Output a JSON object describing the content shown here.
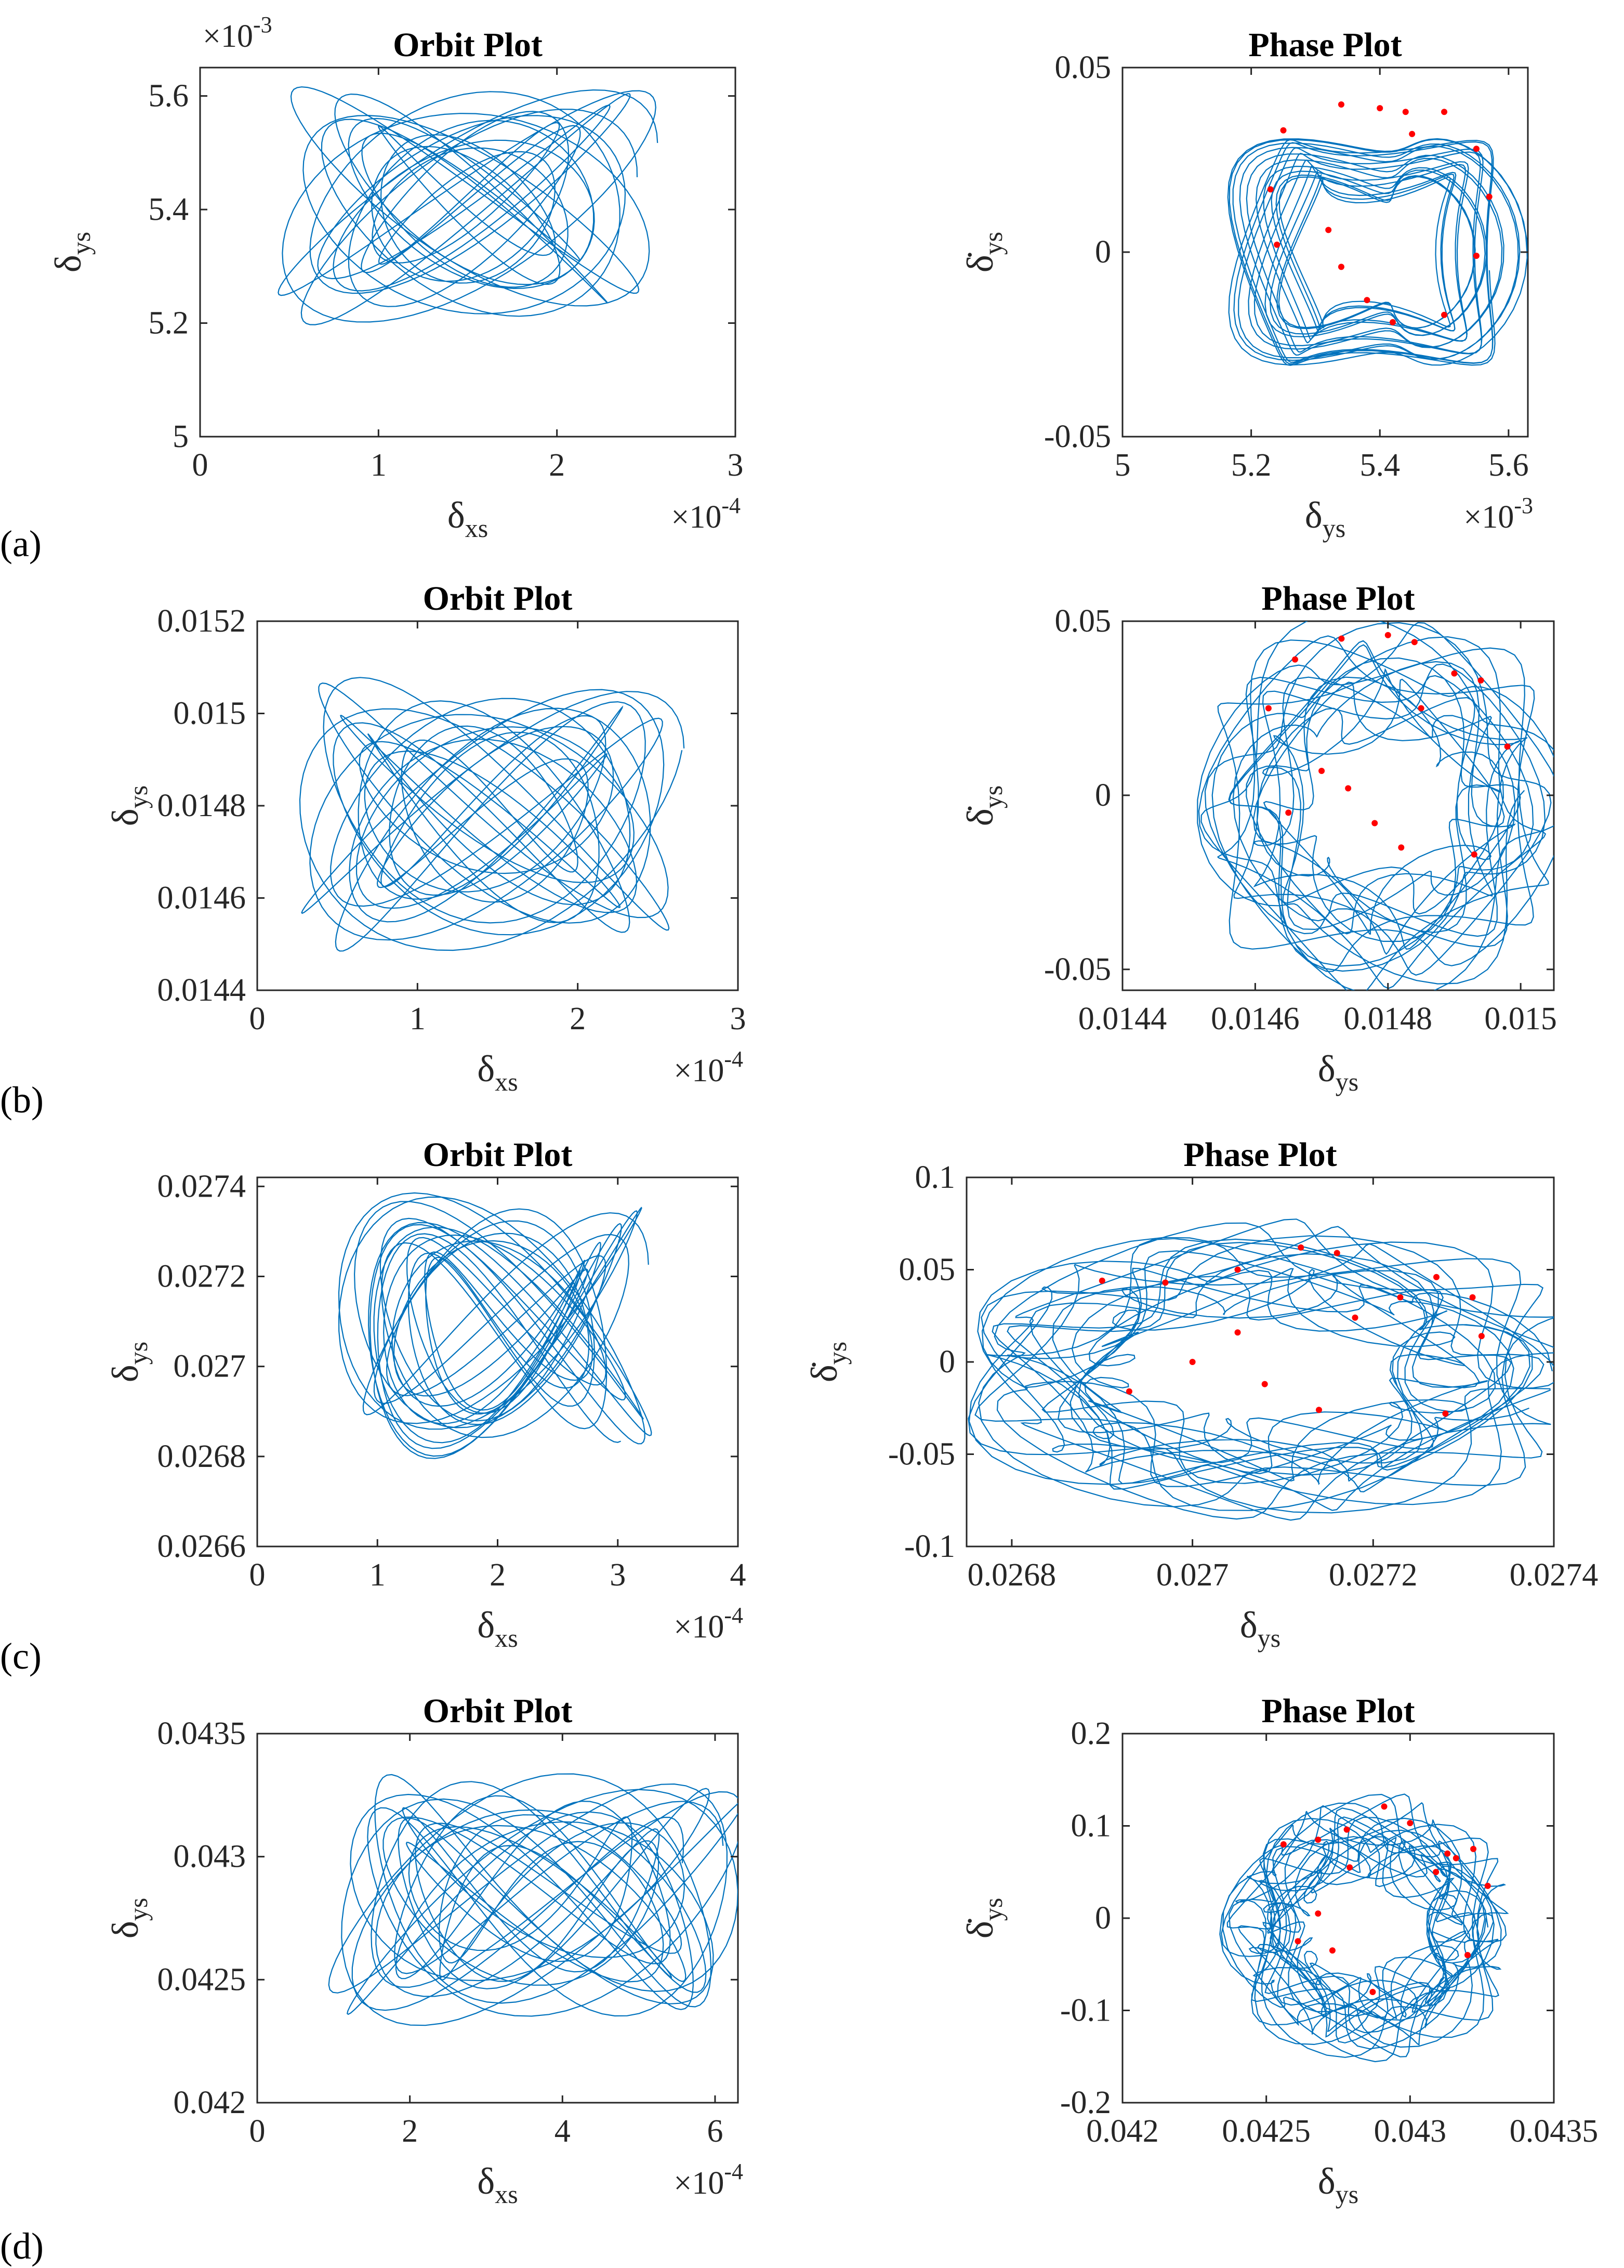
{
  "figure": {
    "panel_labels": [
      "(a)",
      "(b)",
      "(c)",
      "(d)"
    ]
  },
  "chart_data": [
    {
      "panel": "a",
      "kind": "orbit",
      "type": "line",
      "title": "Orbit Plot",
      "xlabel_main": "δ",
      "xlabel_sub": "xs",
      "ylabel_main": "δ",
      "ylabel_sub": "ys",
      "xlim": [
        0,
        3
      ],
      "ylim": [
        5,
        5.65
      ],
      "xticks": [
        "0",
        "1",
        "2",
        "3"
      ],
      "xtick_values": [
        0,
        1,
        2,
        3
      ],
      "yticks": [
        "5",
        "5.2",
        "5.4",
        "5.6"
      ],
      "ytick_values": [
        5,
        5.2,
        5.4,
        5.6
      ],
      "x_multiplier": "×10",
      "x_multiplier_exp": "-4",
      "y_multiplier": "×10",
      "y_multiplier_exp": "-3",
      "series": [
        {
          "name": "orbit",
          "cx": 1.5,
          "cy": 5.41,
          "ax": 0.95,
          "ay": 0.19,
          "color": "#0072BD"
        }
      ]
    },
    {
      "panel": "a",
      "kind": "phase",
      "type": "line",
      "title": "Phase Plot",
      "xlabel_main": "δ",
      "xlabel_sub": "ys",
      "ylabel_main": "δ̇",
      "ylabel_sub": "ys",
      "xlim": [
        5,
        5.63
      ],
      "ylim": [
        -0.05,
        0.05
      ],
      "xticks": [
        "5",
        "5.2",
        "5.4",
        "5.6"
      ],
      "xtick_values": [
        5,
        5.2,
        5.4,
        5.6
      ],
      "yticks": [
        "-0.05",
        "0",
        "0.05"
      ],
      "ytick_values": [
        -0.05,
        0,
        0.05
      ],
      "x_multiplier": "×10",
      "x_multiplier_exp": "-3",
      "series": [
        {
          "name": "trajectory",
          "cx": 5.39,
          "cy": 0,
          "ax": 0.21,
          "ay": 0.035,
          "color": "#0072BD"
        }
      ],
      "poincare_points": [
        [
          5.24,
          0.002
        ],
        [
          5.23,
          0.017
        ],
        [
          5.25,
          0.033
        ],
        [
          5.34,
          0.04
        ],
        [
          5.4,
          0.039
        ],
        [
          5.44,
          0.038
        ],
        [
          5.5,
          0.038
        ],
        [
          5.55,
          0.028
        ],
        [
          5.57,
          0.015
        ],
        [
          5.55,
          -0.001
        ],
        [
          5.5,
          -0.017
        ],
        [
          5.42,
          -0.019
        ],
        [
          5.38,
          -0.013
        ],
        [
          5.34,
          -0.004
        ],
        [
          5.32,
          0.006
        ],
        [
          5.45,
          0.032
        ]
      ]
    },
    {
      "panel": "b",
      "kind": "orbit",
      "type": "line",
      "title": "Orbit Plot",
      "xlabel_main": "δ",
      "xlabel_sub": "xs",
      "ylabel_main": "δ",
      "ylabel_sub": "ys",
      "xlim": [
        0,
        3
      ],
      "ylim": [
        0.0144,
        0.0152
      ],
      "xticks": [
        "0",
        "1",
        "2",
        "3"
      ],
      "xtick_values": [
        0,
        1,
        2,
        3
      ],
      "yticks": [
        "0.0144",
        "0.0146",
        "0.0148",
        "0.015",
        "0.0152"
      ],
      "ytick_values": [
        0.0144,
        0.0146,
        0.0148,
        0.015,
        0.0152
      ],
      "x_multiplier": "×10",
      "x_multiplier_exp": "-4",
      "series": [
        {
          "name": "orbit",
          "cx": 1.45,
          "cy": 0.01478,
          "ax": 1.1,
          "ay": 0.00026,
          "color": "#0072BD"
        }
      ]
    },
    {
      "panel": "b",
      "kind": "phase",
      "type": "line",
      "title": "Phase Plot",
      "xlabel_main": "δ",
      "xlabel_sub": "ys",
      "ylabel_main": "δ̇",
      "ylabel_sub": "ys",
      "xlim": [
        0.0144,
        0.01505
      ],
      "ylim": [
        -0.056,
        0.05
      ],
      "xticks": [
        "0.0144",
        "0.0146",
        "0.0148",
        "0.015"
      ],
      "xtick_values": [
        0.0144,
        0.0146,
        0.0148,
        0.015
      ],
      "yticks": [
        "-0.05",
        "0",
        "0.05"
      ],
      "ytick_values": [
        -0.05,
        0,
        0.05
      ],
      "series": [
        {
          "name": "trajectory",
          "cx": 0.01479,
          "cy": -0.003,
          "ax": 0.00025,
          "ay": 0.046,
          "color": "#0072BD"
        }
      ],
      "poincare_points": [
        [
          0.01462,
          0.025
        ],
        [
          0.01466,
          0.039
        ],
        [
          0.01473,
          0.045
        ],
        [
          0.0148,
          0.046
        ],
        [
          0.01484,
          0.044
        ],
        [
          0.0149,
          0.035
        ],
        [
          0.01494,
          0.033
        ],
        [
          0.01498,
          0.014
        ],
        [
          0.01493,
          -0.017
        ],
        [
          0.01482,
          -0.015
        ],
        [
          0.01478,
          -0.008
        ],
        [
          0.01474,
          0.002
        ],
        [
          0.0147,
          0.007
        ],
        [
          0.01465,
          -0.005
        ],
        [
          0.01485,
          0.025
        ]
      ]
    },
    {
      "panel": "c",
      "kind": "orbit",
      "type": "line",
      "title": "Orbit Plot",
      "xlabel_main": "δ",
      "xlabel_sub": "xs",
      "ylabel_main": "δ",
      "ylabel_sub": "ys",
      "xlim": [
        0,
        4
      ],
      "ylim": [
        0.0266,
        0.02742
      ],
      "xticks": [
        "0",
        "1",
        "2",
        "3",
        "4"
      ],
      "xtick_values": [
        0,
        1,
        2,
        3,
        4
      ],
      "yticks": [
        "0.0266",
        "0.0268",
        "0.027",
        "0.0272",
        "0.0274"
      ],
      "ytick_values": [
        0.0266,
        0.0268,
        0.027,
        0.0272,
        0.0274
      ],
      "x_multiplier": "×10",
      "x_multiplier_exp": "-4",
      "series": [
        {
          "name": "orbit",
          "cx": 2.0,
          "cy": 0.02709,
          "ax": 1.2,
          "ay": 0.00026,
          "color": "#0072BD"
        }
      ]
    },
    {
      "panel": "c",
      "kind": "phase",
      "type": "line",
      "title": "Phase Plot",
      "xlabel_main": "δ",
      "xlabel_sub": "ys",
      "ylabel_main": "δ̇",
      "ylabel_sub": "ys",
      "xlim": [
        0.02675,
        0.0274
      ],
      "ylim": [
        -0.1,
        0.1
      ],
      "xticks": [
        "0.0268",
        "0.027",
        "0.0272",
        "0.0274"
      ],
      "xtick_values": [
        0.0268,
        0.027,
        0.0272,
        0.0274
      ],
      "yticks": [
        "-0.1",
        "-0.05",
        "0",
        "0.05",
        "0.1"
      ],
      "ytick_values": [
        -0.1,
        -0.05,
        0,
        0.05,
        0.1
      ],
      "series": [
        {
          "name": "trajectory",
          "cx": 0.02708,
          "cy": -0.005,
          "ax": 0.00031,
          "ay": 0.068,
          "color": "#0072BD"
        }
      ],
      "poincare_points": [
        [
          0.0269,
          0.044
        ],
        [
          0.02697,
          0.043
        ],
        [
          0.02705,
          0.05
        ],
        [
          0.02712,
          0.062
        ],
        [
          0.02716,
          0.059
        ],
        [
          0.02723,
          0.035
        ],
        [
          0.02727,
          0.046
        ],
        [
          0.02731,
          0.035
        ],
        [
          0.02732,
          0.014
        ],
        [
          0.02728,
          -0.028
        ],
        [
          0.02714,
          -0.026
        ],
        [
          0.02708,
          -0.012
        ],
        [
          0.02705,
          0.016
        ],
        [
          0.027,
          0.0
        ],
        [
          0.02693,
          -0.016
        ],
        [
          0.02718,
          0.024
        ]
      ]
    },
    {
      "panel": "d",
      "kind": "orbit",
      "type": "line",
      "title": "Orbit Plot",
      "xlabel_main": "δ",
      "xlabel_sub": "xs",
      "ylabel_main": "δ",
      "ylabel_sub": "ys",
      "xlim": [
        0,
        6.3
      ],
      "ylim": [
        0.042,
        0.0435
      ],
      "xticks": [
        "0",
        "2",
        "4",
        "6"
      ],
      "xtick_values": [
        0,
        2,
        4,
        6
      ],
      "yticks": [
        "0.042",
        "0.0425",
        "0.043",
        "0.0435"
      ],
      "ytick_values": [
        0.042,
        0.0425,
        0.043,
        0.0435
      ],
      "x_multiplier": "×10",
      "x_multiplier_exp": "-4",
      "series": [
        {
          "name": "orbit",
          "cx": 3.7,
          "cy": 0.04283,
          "ax": 2.5,
          "ay": 0.00045,
          "color": "#0072BD"
        }
      ]
    },
    {
      "panel": "d",
      "kind": "phase",
      "type": "line",
      "title": "Phase Plot",
      "xlabel_main": "δ",
      "xlabel_sub": "ys",
      "ylabel_main": "δ̇",
      "ylabel_sub": "ys",
      "xlim": [
        0.042,
        0.0435
      ],
      "ylim": [
        -0.2,
        0.2
      ],
      "xticks": [
        "0.042",
        "0.0425",
        "0.043",
        "0.0435"
      ],
      "xtick_values": [
        0.042,
        0.0425,
        0.043,
        0.0435
      ],
      "yticks": [
        "-0.2",
        "-0.1",
        "0",
        "0.1",
        "0.2"
      ],
      "ytick_values": [
        -0.2,
        -0.1,
        0,
        0.1,
        0.2
      ],
      "series": [
        {
          "name": "trajectory",
          "cx": 0.04285,
          "cy": -0.01,
          "ax": 0.00045,
          "ay": 0.12,
          "color": "#0072BD"
        }
      ],
      "poincare_points": [
        [
          0.04256,
          0.08
        ],
        [
          0.04268,
          0.085
        ],
        [
          0.04278,
          0.096
        ],
        [
          0.04291,
          0.121
        ],
        [
          0.043,
          0.103
        ],
        [
          0.04309,
          0.05
        ],
        [
          0.04316,
          0.065
        ],
        [
          0.04322,
          0.075
        ],
        [
          0.04327,
          0.035
        ],
        [
          0.0432,
          -0.04
        ],
        [
          0.04287,
          -0.08
        ],
        [
          0.04273,
          -0.035
        ],
        [
          0.04261,
          -0.025
        ],
        [
          0.04268,
          0.005
        ],
        [
          0.04279,
          0.055
        ],
        [
          0.04313,
          0.07
        ]
      ]
    }
  ],
  "colors": {
    "line": "#0072BD",
    "point": "#FF0000",
    "axis": "#262626"
  }
}
